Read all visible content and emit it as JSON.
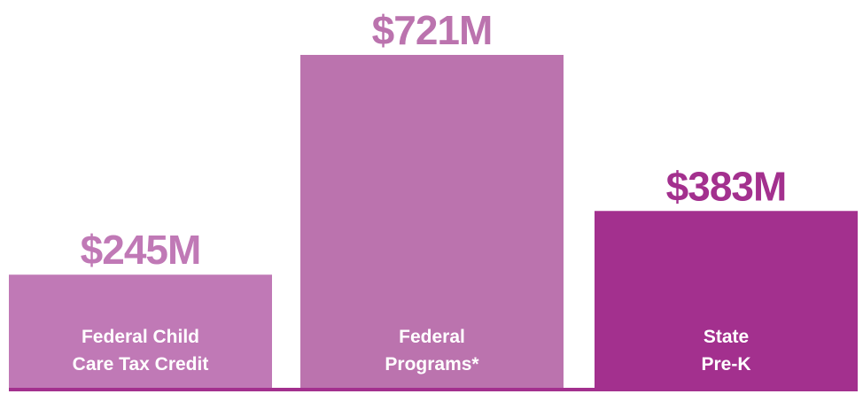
{
  "chart_data": {
    "type": "bar",
    "categories": [
      [
        "Federal Child",
        "Care Tax Credit"
      ],
      [
        "Federal",
        "Programs*"
      ],
      [
        "State",
        "Pre-K"
      ]
    ],
    "values": [
      245,
      721,
      383
    ],
    "value_labels": [
      "$245M",
      "$721M",
      "$383M"
    ],
    "colors": [
      "#c079b6",
      "#bb73ae",
      "#a3308e"
    ],
    "axis_color": "#a3308e",
    "title": "",
    "xlabel": "",
    "ylabel": "",
    "unit": "$M",
    "ylim": [
      0,
      721
    ],
    "grid": false,
    "legend": "none"
  }
}
